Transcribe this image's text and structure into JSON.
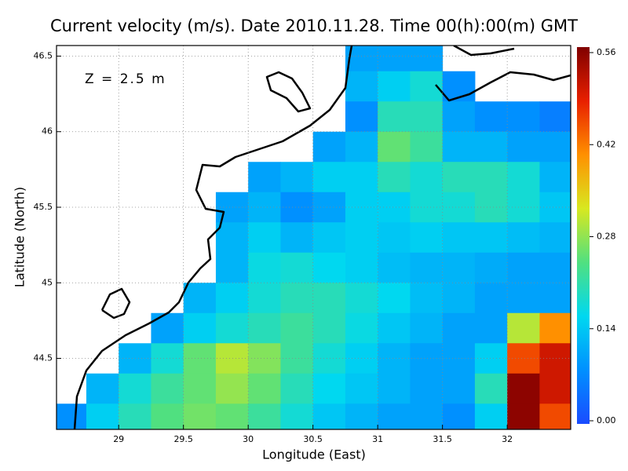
{
  "chart_data": {
    "type": "heatmap",
    "title": "Current velocity (m/s). Date 2010.11.28. Time 00(h):00(m) GMT",
    "annotation": "Z = 2.5 m",
    "x_label": "Longitude (East)",
    "y_label": "Latitude (North)",
    "xlim": [
      28.52,
      32.49
    ],
    "ylim": [
      44.03,
      46.57
    ],
    "xticks": [
      29,
      29.5,
      30,
      30.5,
      31,
      31.5,
      32
    ],
    "yticks": [
      44.5,
      45,
      45.5,
      46,
      46.5
    ],
    "grid": true,
    "clim": [
      0,
      0.56
    ],
    "cticks": [
      {
        "value": 0,
        "label": "0.00"
      },
      0.14,
      0.28,
      0.42,
      0.56
    ],
    "colors": [
      "#1a4cff",
      "#0090ff",
      "#00d8f0",
      "#50e080",
      "#d8e820",
      "#ff9000",
      "#e82000",
      "#800000"
    ],
    "x": [
      28.625,
      28.875,
      29.125,
      29.375,
      29.625,
      29.875,
      30.125,
      30.375,
      30.625,
      30.875,
      31.125,
      31.375,
      31.625,
      31.875,
      32.125,
      32.375
    ],
    "y": [
      46.5,
      46.3,
      46.1,
      45.9,
      45.7,
      45.5,
      45.3,
      45.1,
      44.9,
      44.7,
      44.5,
      44.3,
      44.1
    ],
    "values": [
      [
        null,
        null,
        null,
        null,
        null,
        null,
        null,
        null,
        null,
        0.1,
        0.1,
        0.1,
        null,
        null,
        null,
        null
      ],
      [
        null,
        null,
        null,
        null,
        null,
        null,
        null,
        null,
        null,
        0.12,
        0.15,
        0.18,
        0.08,
        null,
        null,
        null
      ],
      [
        null,
        null,
        null,
        null,
        null,
        null,
        null,
        null,
        null,
        0.08,
        0.2,
        0.2,
        0.1,
        0.08,
        0.08,
        0.06
      ],
      [
        null,
        null,
        null,
        null,
        null,
        null,
        null,
        null,
        0.1,
        0.12,
        0.25,
        0.22,
        0.12,
        0.12,
        0.1,
        0.1
      ],
      [
        null,
        null,
        null,
        null,
        null,
        null,
        0.1,
        0.12,
        0.15,
        0.15,
        0.2,
        0.18,
        0.2,
        0.2,
        0.18,
        0.12
      ],
      [
        null,
        null,
        null,
        null,
        null,
        0.1,
        0.12,
        0.08,
        0.1,
        0.15,
        0.15,
        0.18,
        0.18,
        0.2,
        0.18,
        0.14
      ],
      [
        null,
        null,
        null,
        null,
        null,
        0.12,
        0.15,
        0.12,
        0.14,
        0.15,
        0.14,
        0.15,
        0.14,
        0.14,
        0.13,
        0.12
      ],
      [
        null,
        null,
        null,
        null,
        null,
        0.12,
        0.17,
        0.18,
        0.16,
        0.15,
        0.13,
        0.12,
        0.12,
        0.11,
        0.1,
        0.1
      ],
      [
        null,
        null,
        null,
        null,
        0.12,
        0.15,
        0.18,
        0.2,
        0.2,
        0.18,
        0.16,
        0.13,
        0.12,
        0.1,
        0.1,
        0.1
      ],
      [
        null,
        null,
        null,
        0.1,
        0.15,
        0.18,
        0.2,
        0.22,
        0.2,
        0.17,
        0.14,
        0.12,
        0.1,
        0.1,
        0.3,
        0.4
      ],
      [
        null,
        null,
        0.12,
        0.18,
        0.25,
        0.3,
        0.27,
        0.22,
        0.18,
        0.15,
        0.12,
        0.1,
        0.1,
        0.15,
        0.45,
        0.5
      ],
      [
        null,
        0.12,
        0.18,
        0.22,
        0.25,
        0.28,
        0.25,
        0.2,
        0.16,
        0.14,
        0.12,
        0.1,
        0.1,
        0.2,
        0.55,
        0.5
      ],
      [
        0.08,
        0.15,
        0.2,
        0.24,
        0.26,
        0.25,
        0.22,
        0.18,
        0.14,
        0.12,
        0.1,
        0.1,
        0.08,
        0.15,
        0.55,
        0.45
      ]
    ]
  }
}
